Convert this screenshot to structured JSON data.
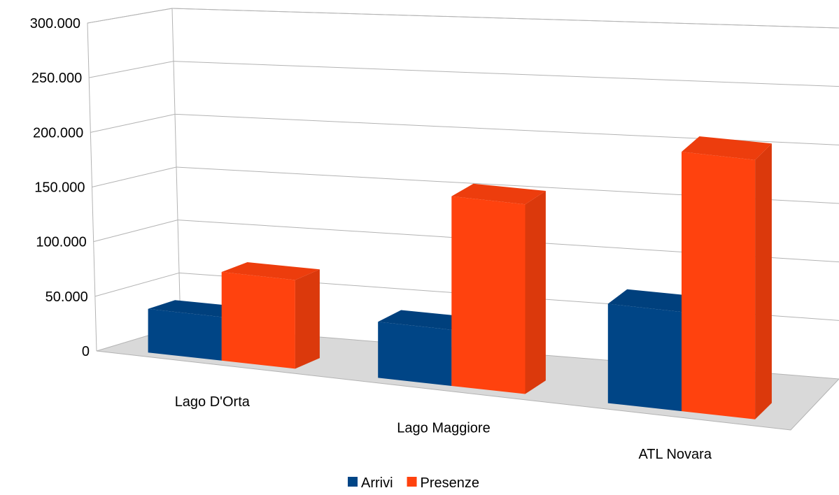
{
  "chart_data": {
    "type": "bar",
    "categories": [
      "Lago D'Orta",
      "Lago Maggiore",
      "ATL Novara"
    ],
    "series": [
      {
        "name": "Arrivi",
        "values": [
          41000,
          54000,
          98000
        ],
        "color": "#004586"
      },
      {
        "name": "Presenze",
        "values": [
          84000,
          184000,
          258000
        ],
        "color": "#ff420e"
      }
    ],
    "y_ticks": [
      "0",
      "50.000",
      "100.000",
      "150.000",
      "200.000",
      "250.000",
      "300.000"
    ],
    "ylim": [
      0,
      300000
    ],
    "grid": true,
    "legend_position": "bottom",
    "style": "3d"
  }
}
